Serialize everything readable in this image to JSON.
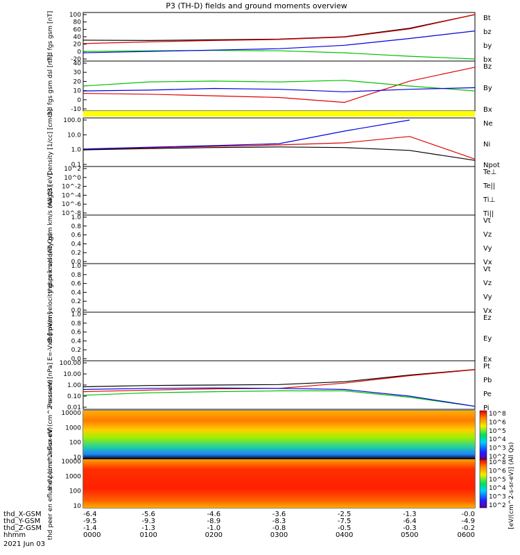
{
  "title": "P3 (TH-D) fields and ground moments overview",
  "footer": {
    "rows": [
      {
        "label": "thd_X-GSM",
        "values": [
          "-6.4",
          "-5.6",
          "-4.6",
          "-3.6",
          "-2.5",
          "-1.3",
          "-0.0"
        ]
      },
      {
        "label": "thd_Y-GSM",
        "values": [
          "-9.5",
          "-9.3",
          "-8.9",
          "-8.3",
          "-7.5",
          "-6.4",
          "-4.9"
        ]
      },
      {
        "label": "thd_Z-GSM",
        "values": [
          "-1.4",
          "-1.3",
          "-1.0",
          "-0.8",
          "-0.5",
          "-0.3",
          "-0.2"
        ]
      },
      {
        "label": "hhmm",
        "values": [
          "0000",
          "0100",
          "0200",
          "0300",
          "0400",
          "0500",
          "0600"
        ]
      }
    ],
    "date": "2021 Jun 03"
  },
  "colorbar": {
    "label": "[eV/(cm^2-s-sr-eV)] (All Qs)",
    "ticks1": [
      "10^8",
      "10^6",
      "10^5",
      "10^4",
      "10^3",
      "10^2"
    ],
    "ticks2": [
      "10^8",
      "10^6",
      "10^5",
      "10^4",
      "10^3",
      "10^2"
    ]
  },
  "chart_data": [
    {
      "type": "line",
      "ylabel": "thd fgs gsm [nT]",
      "yticks": [
        "100",
        "80",
        "60",
        "40",
        "20",
        "0",
        "-20"
      ],
      "ylim": [
        -30,
        100
      ],
      "x": [
        "0000",
        "0100",
        "0200",
        "0300",
        "0400",
        "0500",
        "0600"
      ],
      "series": [
        {
          "name": "Bt",
          "color": "#000000",
          "values": [
            25,
            24,
            26,
            28,
            35,
            60,
            110
          ]
        },
        {
          "name": "bz",
          "color": "#e00000",
          "values": [
            15,
            20,
            24,
            27,
            34,
            58,
            108
          ]
        },
        {
          "name": "by",
          "color": "#00c000",
          "values": [
            -8,
            -6,
            -5,
            -6,
            -12,
            -22,
            -32
          ]
        },
        {
          "name": "bx",
          "color": "#0000e0",
          "values": [
            -12,
            -8,
            -4,
            0,
            10,
            30,
            52
          ]
        }
      ]
    },
    {
      "type": "line",
      "ylabel": "thd fgs gsm dsl [nT]",
      "yticks": [
        "40",
        "30",
        "20",
        "10",
        "0",
        "-10"
      ],
      "ylim": [
        -16,
        40
      ],
      "series": [
        {
          "name": "Bz",
          "color": "#e00000",
          "values": [
            3,
            2,
            0,
            -2,
            -8,
            18,
            35
          ]
        },
        {
          "name": "By",
          "color": "#00c000",
          "values": [
            12,
            17,
            18,
            17,
            19,
            12,
            6
          ]
        },
        {
          "name": "Bx",
          "color": "#0000e0",
          "values": [
            6,
            7,
            9,
            8,
            5,
            8,
            10
          ]
        }
      ]
    },
    {
      "type": "line",
      "ylabel": "Density [1/cc] [cm-3]",
      "yticks": [
        "100.0",
        "10.0",
        "1.0",
        "0.1"
      ],
      "scale": "log",
      "ylim": [
        0.1,
        200
      ],
      "series": [
        {
          "name": "Ne",
          "color": "#e00000",
          "values": [
            1.3,
            1.7,
            2.2,
            2.8,
            4,
            12,
            0.25
          ]
        },
        {
          "name": "Ni",
          "color": "#000000",
          "values": [
            1.2,
            1.5,
            1.8,
            2,
            1.8,
            1.1,
            0.2
          ]
        },
        {
          "name": "Npot",
          "color": "#0000e0",
          "values": [
            1.4,
            1.9,
            2.5,
            3.5,
            30,
            200,
            null
          ]
        }
      ]
    },
    {
      "type": "line",
      "ylabel": "magt3 [eV]",
      "yticks": [
        "10^2",
        "10^0",
        "10^-2",
        "10^-4",
        "10^-6",
        "10^-8"
      ],
      "scale": "log",
      "series": [
        {
          "name": "Te⊥",
          "color": "#e00000"
        },
        {
          "name": "Te||",
          "color": "#000000"
        },
        {
          "name": "Ti⊥",
          "color": "#0000e0"
        },
        {
          "name": "Ti||",
          "color": "#00c000"
        }
      ]
    },
    {
      "type": "line",
      "ylabel": "thd peir velocity gsm km/s (All Qs)",
      "yticks": [
        "1.0",
        "0.8",
        "0.6",
        "0.4",
        "0.2",
        "0.0"
      ],
      "ylim": [
        0,
        1
      ],
      "series": [
        {
          "name": "Vt",
          "color": "#000000"
        },
        {
          "name": "Vz",
          "color": "#e00000"
        },
        {
          "name": "Vy",
          "color": "#00c000"
        },
        {
          "name": "Vx",
          "color": "#0000e0"
        }
      ]
    },
    {
      "type": "line",
      "ylabel": "thd peer velocity gsm km/s (All Qs)",
      "yticks": [
        "1.0",
        "0.8",
        "0.6",
        "0.4",
        "0.2",
        "0.0"
      ],
      "ylim": [
        0,
        1
      ],
      "series": [
        {
          "name": "Vt",
          "color": "#000000"
        },
        {
          "name": "Vz",
          "color": "#e00000"
        },
        {
          "name": "Vy",
          "color": "#00c000"
        },
        {
          "name": "Vx",
          "color": "#0000e0"
        }
      ]
    },
    {
      "type": "line",
      "ylabel": "E=-VxB [mV/m]",
      "yticks": [
        "1.0",
        "0.8",
        "0.6",
        "0.4",
        "0.2",
        "0.0"
      ],
      "ylim": [
        0,
        1
      ],
      "series": [
        {
          "name": "Ez",
          "color": "#e00000"
        },
        {
          "name": "Ey",
          "color": "#00c000"
        },
        {
          "name": "Ex",
          "color": "#0000e0"
        }
      ]
    },
    {
      "type": "line",
      "ylabel": "Pressure [nPa]",
      "yticks": [
        "100.00",
        "10.00",
        "1.00",
        "0.10",
        "0.01"
      ],
      "scale": "log",
      "ylim": [
        0.01,
        100
      ],
      "series": [
        {
          "name": "Pt",
          "color": "#000000",
          "values": [
            0.7,
            0.9,
            1.0,
            1.1,
            2.0,
            8,
            25
          ]
        },
        {
          "name": "Pb",
          "color": "#e00000",
          "values": [
            0.25,
            0.35,
            0.45,
            0.5,
            1.5,
            7,
            24
          ]
        },
        {
          "name": "Pe",
          "color": "#00c000",
          "values": [
            0.12,
            0.2,
            0.25,
            0.3,
            0.3,
            0.08,
            0.012
          ]
        },
        {
          "name": "Pi",
          "color": "#0000e0",
          "values": [
            0.4,
            0.5,
            0.55,
            0.5,
            0.4,
            0.1,
            0.012
          ]
        }
      ]
    },
    {
      "type": "heatmap",
      "ylabel": "thd peir en eflux eV (cm^2-s-sr-eV)",
      "yticks": [
        "10000",
        "1000",
        "100",
        "10"
      ],
      "scale": "log"
    },
    {
      "type": "heatmap",
      "ylabel": "thd peer en eflux eV (cm^2-s-sr-eV)",
      "yticks": [
        "10000",
        "1000",
        "100",
        "10"
      ],
      "scale": "log"
    }
  ]
}
